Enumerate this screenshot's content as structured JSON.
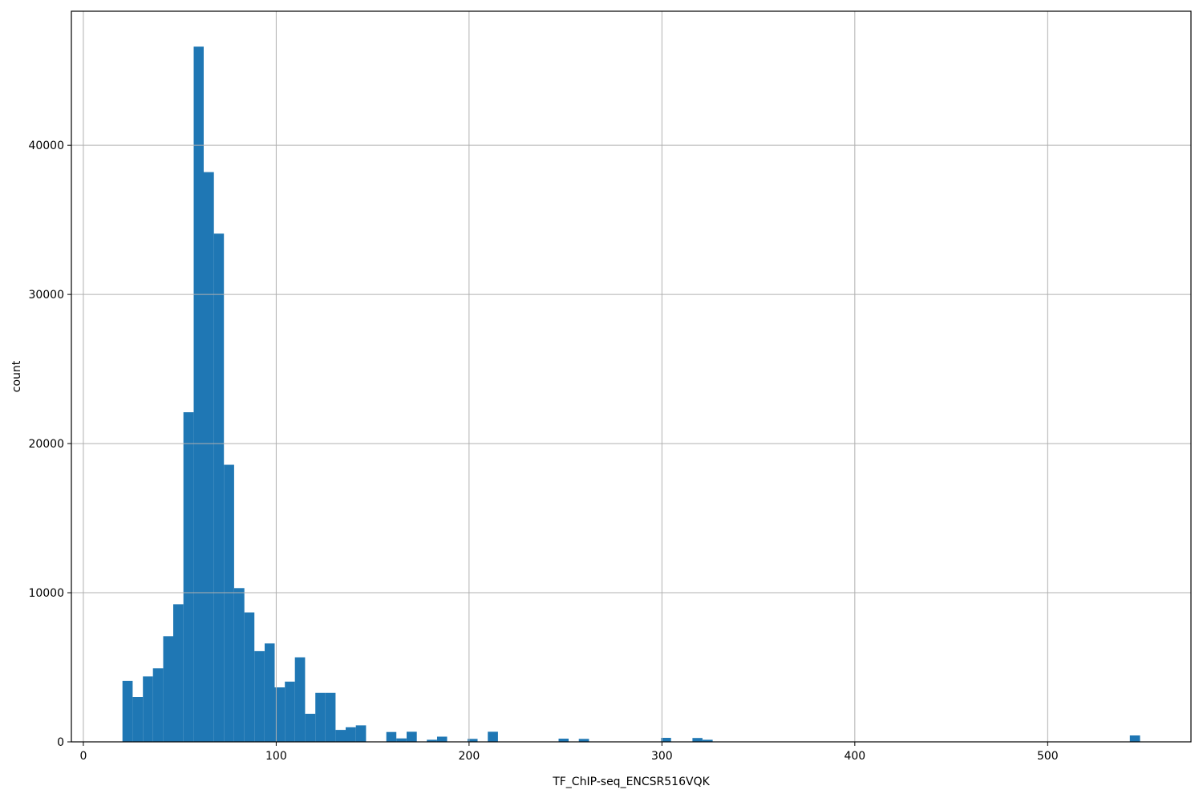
{
  "chart_data": {
    "type": "histogram",
    "title": "",
    "xlabel": "TF_ChIP-seq_ENCSR516VQK",
    "ylabel": "count",
    "legend": false,
    "grid": true,
    "grid_on_top_of_bars": true,
    "bar_color": "#1f77b4",
    "grid_color": "#b0b0b0",
    "axis_color": "#000000",
    "background_color": "#ffffff",
    "xlim": [
      -6.2,
      574.3
    ],
    "ylim": [
      0,
      48990
    ],
    "x_ticks": [
      0,
      100,
      200,
      300,
      400,
      500
    ],
    "y_ticks": [
      0,
      10000,
      20000,
      30000,
      40000
    ],
    "bin_width": 5.26,
    "bins": [
      {
        "x0": 20.3,
        "x1": 25.6,
        "count": 4090
      },
      {
        "x0": 25.6,
        "x1": 30.9,
        "count": 3010
      },
      {
        "x0": 30.9,
        "x1": 36.1,
        "count": 4390
      },
      {
        "x0": 36.1,
        "x1": 41.4,
        "count": 4930
      },
      {
        "x0": 41.4,
        "x1": 46.6,
        "count": 7080
      },
      {
        "x0": 46.6,
        "x1": 51.9,
        "count": 9230
      },
      {
        "x0": 51.9,
        "x1": 57.2,
        "count": 22100
      },
      {
        "x0": 57.2,
        "x1": 62.4,
        "count": 46620
      },
      {
        "x0": 62.4,
        "x1": 67.7,
        "count": 38200
      },
      {
        "x0": 67.7,
        "x1": 72.9,
        "count": 34080
      },
      {
        "x0": 72.9,
        "x1": 78.2,
        "count": 18580
      },
      {
        "x0": 78.2,
        "x1": 83.5,
        "count": 10310
      },
      {
        "x0": 83.5,
        "x1": 88.7,
        "count": 8680
      },
      {
        "x0": 88.7,
        "x1": 94.0,
        "count": 6080
      },
      {
        "x0": 94.0,
        "x1": 99.2,
        "count": 6600
      },
      {
        "x0": 99.2,
        "x1": 104.5,
        "count": 3650
      },
      {
        "x0": 104.5,
        "x1": 109.7,
        "count": 4040
      },
      {
        "x0": 109.7,
        "x1": 115.0,
        "count": 5670
      },
      {
        "x0": 115.0,
        "x1": 120.3,
        "count": 1880
      },
      {
        "x0": 120.3,
        "x1": 125.5,
        "count": 3290
      },
      {
        "x0": 125.5,
        "x1": 130.8,
        "count": 3290
      },
      {
        "x0": 130.8,
        "x1": 136.0,
        "count": 800
      },
      {
        "x0": 136.0,
        "x1": 141.3,
        "count": 980
      },
      {
        "x0": 141.3,
        "x1": 146.6,
        "count": 1110
      },
      {
        "x0": 157.1,
        "x1": 162.3,
        "count": 660
      },
      {
        "x0": 162.3,
        "x1": 167.6,
        "count": 230
      },
      {
        "x0": 167.6,
        "x1": 172.9,
        "count": 680
      },
      {
        "x0": 178.1,
        "x1": 183.4,
        "count": 140
      },
      {
        "x0": 183.4,
        "x1": 188.6,
        "count": 350
      },
      {
        "x0": 199.2,
        "x1": 204.4,
        "count": 200
      },
      {
        "x0": 209.7,
        "x1": 215.0,
        "count": 680
      },
      {
        "x0": 246.4,
        "x1": 251.6,
        "count": 215
      },
      {
        "x0": 256.9,
        "x1": 262.2,
        "count": 200
      },
      {
        "x0": 299.5,
        "x1": 304.7,
        "count": 270
      },
      {
        "x0": 315.8,
        "x1": 321.0,
        "count": 260
      },
      {
        "x0": 321.0,
        "x1": 326.3,
        "count": 140
      },
      {
        "x0": 542.6,
        "x1": 547.9,
        "count": 430
      }
    ]
  }
}
